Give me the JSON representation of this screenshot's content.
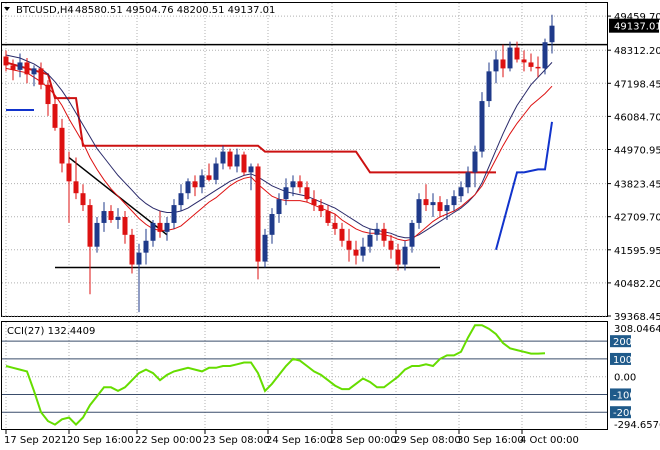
{
  "header": {
    "symbol": "BTCUSD,H4",
    "ohlc": "48580.51 49504.76 48200.51 49137.01",
    "arrow_icon": "triangle-down-icon"
  },
  "price_axis": {
    "labels": [
      "49459.70",
      "48312.20",
      "47198.45",
      "46084.70",
      "44970.95",
      "43823.45",
      "42709.70",
      "41595.95",
      "40482.20",
      "39368.45"
    ],
    "current_price": "49137.01",
    "current_price_color": "#000000"
  },
  "cci_panel": {
    "title": "CCI(27) 132.4409",
    "axis_labels": {
      "top": "308.0464",
      "bottom": "-294.6576",
      "zero": "0.00"
    },
    "level_labels": [
      "200",
      "100",
      "-100",
      "-200"
    ],
    "level_label_color": "#1f5a8a"
  },
  "time_axis": {
    "labels": [
      "17 Sep 2021",
      "20 Sep 16:00",
      "22 Sep 00:00",
      "23 Sep 08:00",
      "24 Sep 16:00",
      "28 Sep 00:00",
      "29 Sep 08:00",
      "30 Sep 16:00",
      "4 Oct 00:00"
    ]
  },
  "colors": {
    "bull": "#1f3a8a",
    "bear": "#dd1111",
    "ma_fast": "#dd1111",
    "ma_slow": "#2a2a6a",
    "stop_red": "#cc1111",
    "stop_blue": "#1133cc",
    "cci_line": "#66dd00",
    "cci_levels": "#3a4d6b"
  },
  "chart_data": {
    "type": "candlestick",
    "timeframe": "H4",
    "symbol": "BTCUSD",
    "ylim": [
      39368.45,
      49900
    ],
    "candles": [
      {
        "o": 48100,
        "h": 48300,
        "l": 47600,
        "c": 47800
      },
      {
        "o": 47800,
        "h": 48000,
        "l": 47300,
        "c": 47650
      },
      {
        "o": 47650,
        "h": 48200,
        "l": 47400,
        "c": 47900
      },
      {
        "o": 47900,
        "h": 48050,
        "l": 47200,
        "c": 47500
      },
      {
        "o": 47500,
        "h": 47800,
        "l": 47100,
        "c": 47700
      },
      {
        "o": 47700,
        "h": 47900,
        "l": 47000,
        "c": 47150
      },
      {
        "o": 47150,
        "h": 47300,
        "l": 46100,
        "c": 46500
      },
      {
        "o": 46500,
        "h": 46700,
        "l": 45600,
        "c": 45700
      },
      {
        "o": 45700,
        "h": 46000,
        "l": 44200,
        "c": 44500
      },
      {
        "o": 44500,
        "h": 44900,
        "l": 42500,
        "c": 43900
      },
      {
        "o": 43900,
        "h": 44700,
        "l": 43300,
        "c": 43500
      },
      {
        "o": 43500,
        "h": 43800,
        "l": 42900,
        "c": 43100
      },
      {
        "o": 43100,
        "h": 43300,
        "l": 40100,
        "c": 41700
      },
      {
        "o": 41700,
        "h": 42700,
        "l": 41500,
        "c": 42500
      },
      {
        "o": 42500,
        "h": 43200,
        "l": 42200,
        "c": 42900
      },
      {
        "o": 42900,
        "h": 43100,
        "l": 42500,
        "c": 42600
      },
      {
        "o": 42600,
        "h": 43000,
        "l": 42300,
        "c": 42700
      },
      {
        "o": 42700,
        "h": 42900,
        "l": 41800,
        "c": 42100
      },
      {
        "o": 42100,
        "h": 42300,
        "l": 40800,
        "c": 41100
      },
      {
        "o": 41100,
        "h": 41800,
        "l": 39500,
        "c": 41500
      },
      {
        "o": 41500,
        "h": 42300,
        "l": 41100,
        "c": 41900
      },
      {
        "o": 41900,
        "h": 42600,
        "l": 41700,
        "c": 42500
      },
      {
        "o": 42500,
        "h": 42900,
        "l": 42000,
        "c": 42200
      },
      {
        "o": 42200,
        "h": 42700,
        "l": 41900,
        "c": 42500
      },
      {
        "o": 42500,
        "h": 43300,
        "l": 42300,
        "c": 43100
      },
      {
        "o": 43100,
        "h": 43800,
        "l": 42900,
        "c": 43500
      },
      {
        "o": 43500,
        "h": 44000,
        "l": 43300,
        "c": 43900
      },
      {
        "o": 43900,
        "h": 44100,
        "l": 43400,
        "c": 43700
      },
      {
        "o": 43700,
        "h": 44300,
        "l": 43500,
        "c": 44100
      },
      {
        "o": 44100,
        "h": 44500,
        "l": 43900,
        "c": 43950
      },
      {
        "o": 43950,
        "h": 44700,
        "l": 43800,
        "c": 44500
      },
      {
        "o": 44500,
        "h": 45100,
        "l": 44300,
        "c": 44900
      },
      {
        "o": 44900,
        "h": 45000,
        "l": 44300,
        "c": 44400
      },
      {
        "o": 44400,
        "h": 45000,
        "l": 44200,
        "c": 44800
      },
      {
        "o": 44800,
        "h": 44900,
        "l": 44100,
        "c": 44200
      },
      {
        "o": 44200,
        "h": 44500,
        "l": 43600,
        "c": 44400
      },
      {
        "o": 44400,
        "h": 44500,
        "l": 40600,
        "c": 41200
      },
      {
        "o": 41200,
        "h": 42300,
        "l": 41000,
        "c": 42100
      },
      {
        "o": 42100,
        "h": 43000,
        "l": 41800,
        "c": 42800
      },
      {
        "o": 42800,
        "h": 43500,
        "l": 42500,
        "c": 43300
      },
      {
        "o": 43300,
        "h": 44000,
        "l": 43100,
        "c": 43700
      },
      {
        "o": 43700,
        "h": 44100,
        "l": 43400,
        "c": 43900
      },
      {
        "o": 43900,
        "h": 44100,
        "l": 43500,
        "c": 43700
      },
      {
        "o": 43700,
        "h": 43900,
        "l": 43200,
        "c": 43300
      },
      {
        "o": 43300,
        "h": 43600,
        "l": 42900,
        "c": 43100
      },
      {
        "o": 43100,
        "h": 43300,
        "l": 42700,
        "c": 42900
      },
      {
        "o": 42900,
        "h": 43100,
        "l": 42400,
        "c": 42500
      },
      {
        "o": 42500,
        "h": 42800,
        "l": 42100,
        "c": 42300
      },
      {
        "o": 42300,
        "h": 42500,
        "l": 41700,
        "c": 41900
      },
      {
        "o": 41900,
        "h": 42300,
        "l": 41200,
        "c": 41600
      },
      {
        "o": 41600,
        "h": 41900,
        "l": 41100,
        "c": 41400
      },
      {
        "o": 41400,
        "h": 42000,
        "l": 41200,
        "c": 41700
      },
      {
        "o": 41700,
        "h": 42300,
        "l": 41500,
        "c": 42100
      },
      {
        "o": 42100,
        "h": 42500,
        "l": 41900,
        "c": 42300
      },
      {
        "o": 42300,
        "h": 42500,
        "l": 41700,
        "c": 41900
      },
      {
        "o": 41900,
        "h": 42100,
        "l": 41300,
        "c": 41600
      },
      {
        "o": 41600,
        "h": 41800,
        "l": 40900,
        "c": 41100
      },
      {
        "o": 41100,
        "h": 41900,
        "l": 40900,
        "c": 41700
      },
      {
        "o": 41700,
        "h": 42600,
        "l": 41500,
        "c": 42500
      },
      {
        "o": 42500,
        "h": 43500,
        "l": 42300,
        "c": 43300
      },
      {
        "o": 43300,
        "h": 43800,
        "l": 42900,
        "c": 43100
      },
      {
        "o": 43100,
        "h": 43500,
        "l": 42700,
        "c": 43200
      },
      {
        "o": 43200,
        "h": 43400,
        "l": 42700,
        "c": 42900
      },
      {
        "o": 42900,
        "h": 43300,
        "l": 42600,
        "c": 43100
      },
      {
        "o": 43100,
        "h": 43600,
        "l": 42900,
        "c": 43400
      },
      {
        "o": 43400,
        "h": 43900,
        "l": 43200,
        "c": 43700
      },
      {
        "o": 43700,
        "h": 44400,
        "l": 43500,
        "c": 44200
      },
      {
        "o": 44200,
        "h": 45100,
        "l": 43700,
        "c": 44900
      },
      {
        "o": 44900,
        "h": 46900,
        "l": 44700,
        "c": 46600
      },
      {
        "o": 46600,
        "h": 47900,
        "l": 46400,
        "c": 47600
      },
      {
        "o": 47600,
        "h": 48300,
        "l": 47200,
        "c": 48000
      },
      {
        "o": 48000,
        "h": 48500,
        "l": 47400,
        "c": 47700
      },
      {
        "o": 47700,
        "h": 48600,
        "l": 47600,
        "c": 48400
      },
      {
        "o": 48400,
        "h": 48600,
        "l": 47900,
        "c": 48000
      },
      {
        "o": 48000,
        "h": 48300,
        "l": 47600,
        "c": 47900
      },
      {
        "o": 47900,
        "h": 48200,
        "l": 47600,
        "c": 47750
      },
      {
        "o": 47750,
        "h": 48100,
        "l": 47400,
        "c": 47700
      },
      {
        "o": 47700,
        "h": 48700,
        "l": 47500,
        "c": 48580
      },
      {
        "o": 48580.51,
        "h": 49504.76,
        "l": 48200.51,
        "c": 49137.01
      }
    ],
    "moving_average_fast": [
      47700,
      47650,
      47600,
      47550,
      47400,
      47250,
      47050,
      46800,
      46450,
      46000,
      45600,
      45200,
      44700,
      44300,
      43950,
      43650,
      43400,
      43150,
      42900,
      42650,
      42450,
      42300,
      42250,
      42250,
      42300,
      42400,
      42600,
      42800,
      43000,
      43200,
      43350,
      43550,
      43750,
      43900,
      44000,
      44050,
      43800,
      43600,
      43400,
      43300,
      43250,
      43250,
      43250,
      43200,
      43100,
      43000,
      42900,
      42800,
      42600,
      42450,
      42300,
      42200,
      42150,
      42150,
      42100,
      42050,
      41950,
      41900,
      41950,
      42150,
      42350,
      42550,
      42700,
      42800,
      42900,
      43050,
      43250,
      43450,
      43750,
      44200,
      44650,
      45100,
      45500,
      45850,
      46150,
      46450,
      46650,
      46850,
      47100
    ],
    "moving_average_slow": [
      48150,
      48100,
      48050,
      47950,
      47850,
      47700,
      47500,
      47250,
      46950,
      46600,
      46200,
      45800,
      45400,
      45000,
      44700,
      44400,
      44100,
      43850,
      43600,
      43350,
      43150,
      43000,
      42900,
      42850,
      42850,
      42900,
      43000,
      43150,
      43300,
      43450,
      43600,
      43750,
      43900,
      44000,
      44100,
      44150,
      44050,
      43900,
      43750,
      43650,
      43550,
      43500,
      43450,
      43400,
      43300,
      43200,
      43100,
      43000,
      42850,
      42700,
      42550,
      42400,
      42300,
      42250,
      42200,
      42150,
      42050,
      42000,
      42000,
      42100,
      42250,
      42400,
      42550,
      42700,
      42850,
      43000,
      43200,
      43450,
      43850,
      44400,
      44950,
      45500,
      46000,
      46450,
      46800,
      47150,
      47400,
      47650,
      47900
    ],
    "stop_line_red": [
      {
        "i": 0,
        "v": 47900
      },
      {
        "i": 6,
        "v": 47500
      },
      {
        "i": 7,
        "v": 46700
      },
      {
        "i": 10,
        "v": 46700
      },
      {
        "i": 11,
        "v": 45100
      },
      {
        "i": 36,
        "v": 45100
      },
      {
        "i": 37,
        "v": 44900
      },
      {
        "i": 50,
        "v": 44900
      },
      {
        "i": 52,
        "v": 44200
      },
      {
        "i": 70,
        "v": 44200
      }
    ],
    "stop_line_blue": [
      {
        "i": 0,
        "v": 46300
      },
      {
        "i": 4,
        "v": 46300
      },
      {
        "i": 70,
        "v": 41600
      },
      {
        "i": 73,
        "v": 44200
      },
      {
        "i": 74,
        "v": 44200
      },
      {
        "i": 76,
        "v": 44300
      },
      {
        "i": 77,
        "v": 44300
      },
      {
        "i": 78,
        "v": 45900
      }
    ],
    "horizontal_lines": [
      48500,
      41000
    ],
    "trend_line": {
      "from": {
        "i": 9,
        "v": 44700
      },
      "to": {
        "i": 23,
        "v": 42100
      }
    },
    "cci": {
      "ylim": [
        -294.6576,
        308.0464
      ],
      "levels": [
        200,
        100,
        -100,
        -200
      ],
      "values": [
        60,
        50,
        40,
        30,
        -80,
        -200,
        -250,
        -270,
        -240,
        -230,
        -270,
        -230,
        -160,
        -110,
        -60,
        -60,
        -80,
        -60,
        -20,
        20,
        40,
        20,
        -20,
        10,
        30,
        40,
        50,
        40,
        30,
        50,
        50,
        60,
        60,
        70,
        80,
        80,
        20,
        -80,
        -40,
        10,
        60,
        100,
        90,
        60,
        30,
        10,
        -20,
        -50,
        -70,
        -70,
        -40,
        -10,
        -30,
        -60,
        -60,
        -30,
        0,
        40,
        60,
        60,
        70,
        60,
        100,
        120,
        120,
        140,
        220,
        290,
        290,
        270,
        240,
        190,
        160,
        150,
        140,
        130,
        130,
        132
      ]
    }
  }
}
